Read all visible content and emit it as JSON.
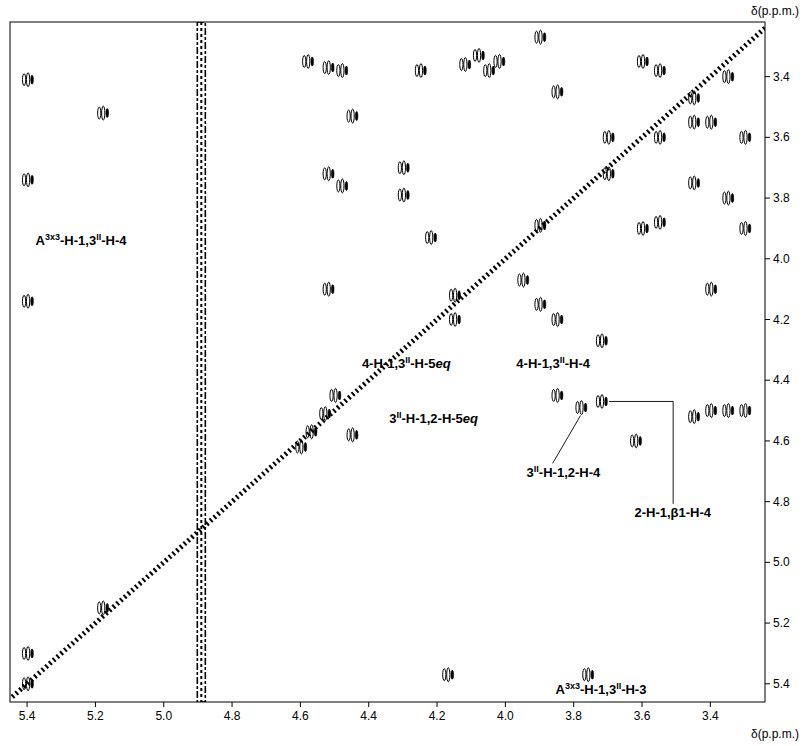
{
  "chart_data": {
    "type": "scatter",
    "x_label": "δ(p.p.m.)",
    "y_label": "δ(p.p.m.)",
    "xlim": [
      5.45,
      3.24
    ],
    "ylim": [
      3.22,
      5.46
    ],
    "xticks": [
      5.4,
      5.2,
      {
        "value": 5,
        "label": "5.0"
      },
      4.8,
      4.6,
      4.4,
      4.2,
      {
        "value": 4,
        "label": "4.0"
      },
      3.8,
      3.6,
      3.4
    ],
    "yticks": [
      3.4,
      3.6,
      3.8,
      {
        "value": 4,
        "label": "4.0"
      },
      4.2,
      4.4,
      4.6,
      4.8,
      {
        "value": 5,
        "label": "5.0"
      },
      5.2,
      5.4
    ],
    "color": "#000000",
    "marker": "contour",
    "water_ridge_x": 4.89,
    "peaks": {
      "x": [
        5.4,
        5.4,
        5.4,
        5.4,
        5.4,
        5.18,
        5.18,
        4.58,
        4.52,
        4.48,
        4.45,
        4.52,
        4.48,
        4.52,
        4.6,
        4.57,
        4.53,
        4.5,
        4.45,
        4.3,
        4.3,
        4.25,
        4.22,
        4.15,
        4.15,
        4.17,
        4.12,
        4.08,
        4.05,
        4.02,
        3.9,
        3.9,
        3.9,
        3.95,
        3.85,
        3.85,
        3.85,
        3.78,
        3.72,
        3.72,
        3.76,
        3.7,
        3.7,
        3.6,
        3.6,
        3.62,
        3.55,
        3.55,
        3.55,
        3.45,
        3.45,
        3.45,
        3.45,
        3.4,
        3.4,
        3.4,
        3.35,
        3.35,
        3.35,
        3.3,
        3.3,
        3.3
      ],
      "y": [
        3.41,
        3.74,
        4.14,
        5.3,
        5.4,
        3.52,
        5.15,
        3.35,
        3.37,
        3.38,
        3.53,
        3.72,
        3.76,
        4.1,
        4.62,
        4.57,
        4.51,
        4.45,
        4.58,
        3.7,
        3.79,
        3.38,
        3.93,
        4.12,
        4.2,
        5.37,
        3.36,
        3.33,
        3.38,
        3.35,
        3.27,
        3.89,
        4.15,
        4.07,
        3.45,
        4.2,
        4.45,
        4.49,
        4.47,
        4.27,
        5.37,
        3.6,
        3.72,
        3.35,
        3.9,
        4.6,
        3.38,
        3.6,
        3.88,
        3.47,
        3.55,
        3.75,
        4.52,
        3.55,
        4.1,
        4.5,
        3.4,
        3.8,
        4.5,
        3.6,
        3.9,
        4.5
      ]
    },
    "annotations": [
      {
        "text": [
          "A",
          {
            "sup": "3x3"
          },
          "-H-1,3",
          {
            "sup": "II"
          },
          "-H-4"
        ],
        "x": 5.375,
        "y": 3.955,
        "anchor": "start"
      },
      {
        "text": [
          "4-H-1,3",
          {
            "sup": "II"
          },
          "-H-5",
          {
            "it": "eq"
          }
        ],
        "x": 4.29,
        "y": 4.36,
        "anchor": "middle"
      },
      {
        "text": [
          "4-H-1,3",
          {
            "sup": "II"
          },
          "-H-4"
        ],
        "x": 3.86,
        "y": 4.36,
        "anchor": "middle"
      },
      {
        "text": [
          "3",
          {
            "sup": "II"
          },
          "-H-1,2-H-5",
          {
            "it": "eq"
          }
        ],
        "x": 4.21,
        "y": 4.54,
        "anchor": "middle"
      },
      {
        "text": [
          "3",
          {
            "sup": "II"
          },
          "-H-1,2-H-4"
        ],
        "x": 3.83,
        "y": 4.72,
        "anchor": "middle",
        "point_x": 3.78,
        "point_y": 4.49
      },
      {
        "text": [
          "2-H-1,β1-H-4"
        ],
        "x": 3.51,
        "y": 4.85,
        "anchor": "middle",
        "point_x": 3.72,
        "point_y": 4.47,
        "elbow": true
      },
      {
        "text": [
          "A",
          {
            "sup": "3x3"
          },
          "-H-1,3",
          {
            "sup": "II"
          },
          "-H-3"
        ],
        "x": 3.72,
        "y": 5.435,
        "anchor": "middle"
      }
    ]
  }
}
